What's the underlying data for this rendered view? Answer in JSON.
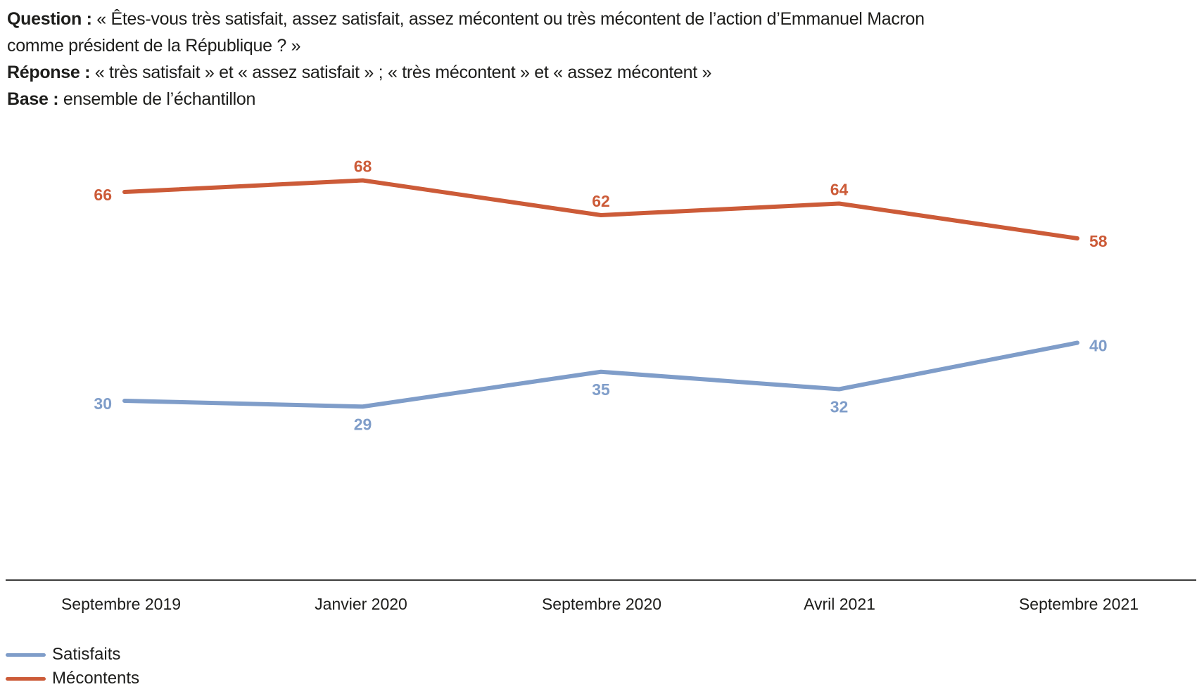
{
  "header": {
    "question_label": "Question :",
    "question_line1": "« Êtes-vous très satisfait, assez satisfait, assez mécontent ou très mécontent de l’action d’Emmanuel Macron",
    "question_line2": "comme président de la République ? »",
    "response_label": "Réponse :",
    "response_text": "« très satisfait » et « assez satisfait » ; « très mécontent » et « assez mécontent »",
    "base_label": "Base :",
    "base_text": "ensemble de l’échantillon"
  },
  "chart_data": {
    "type": "line",
    "categories": [
      "Septembre 2019",
      "Janvier 2020",
      "Septembre 2020",
      "Avril 2021",
      "Septembre 2021"
    ],
    "series": [
      {
        "name": "Satisfaits",
        "color": "#7F9DC9",
        "values": [
          30,
          29,
          35,
          32,
          40
        ],
        "label_positions": [
          "left",
          "below",
          "below",
          "below",
          "right"
        ]
      },
      {
        "name": "Mécontents",
        "color": "#CC5B38",
        "values": [
          66,
          68,
          62,
          64,
          58
        ],
        "label_positions": [
          "left",
          "above",
          "above",
          "above",
          "right"
        ]
      }
    ],
    "ylim": [
      0,
      100
    ],
    "grid": false,
    "data_labels": true,
    "legend_position": "bottom-left"
  },
  "colors": {
    "text": "#1D1D1B",
    "axis_line": "#3C3C3B",
    "satisfaits": "#7F9DC9",
    "mecontents": "#CC5B38"
  }
}
